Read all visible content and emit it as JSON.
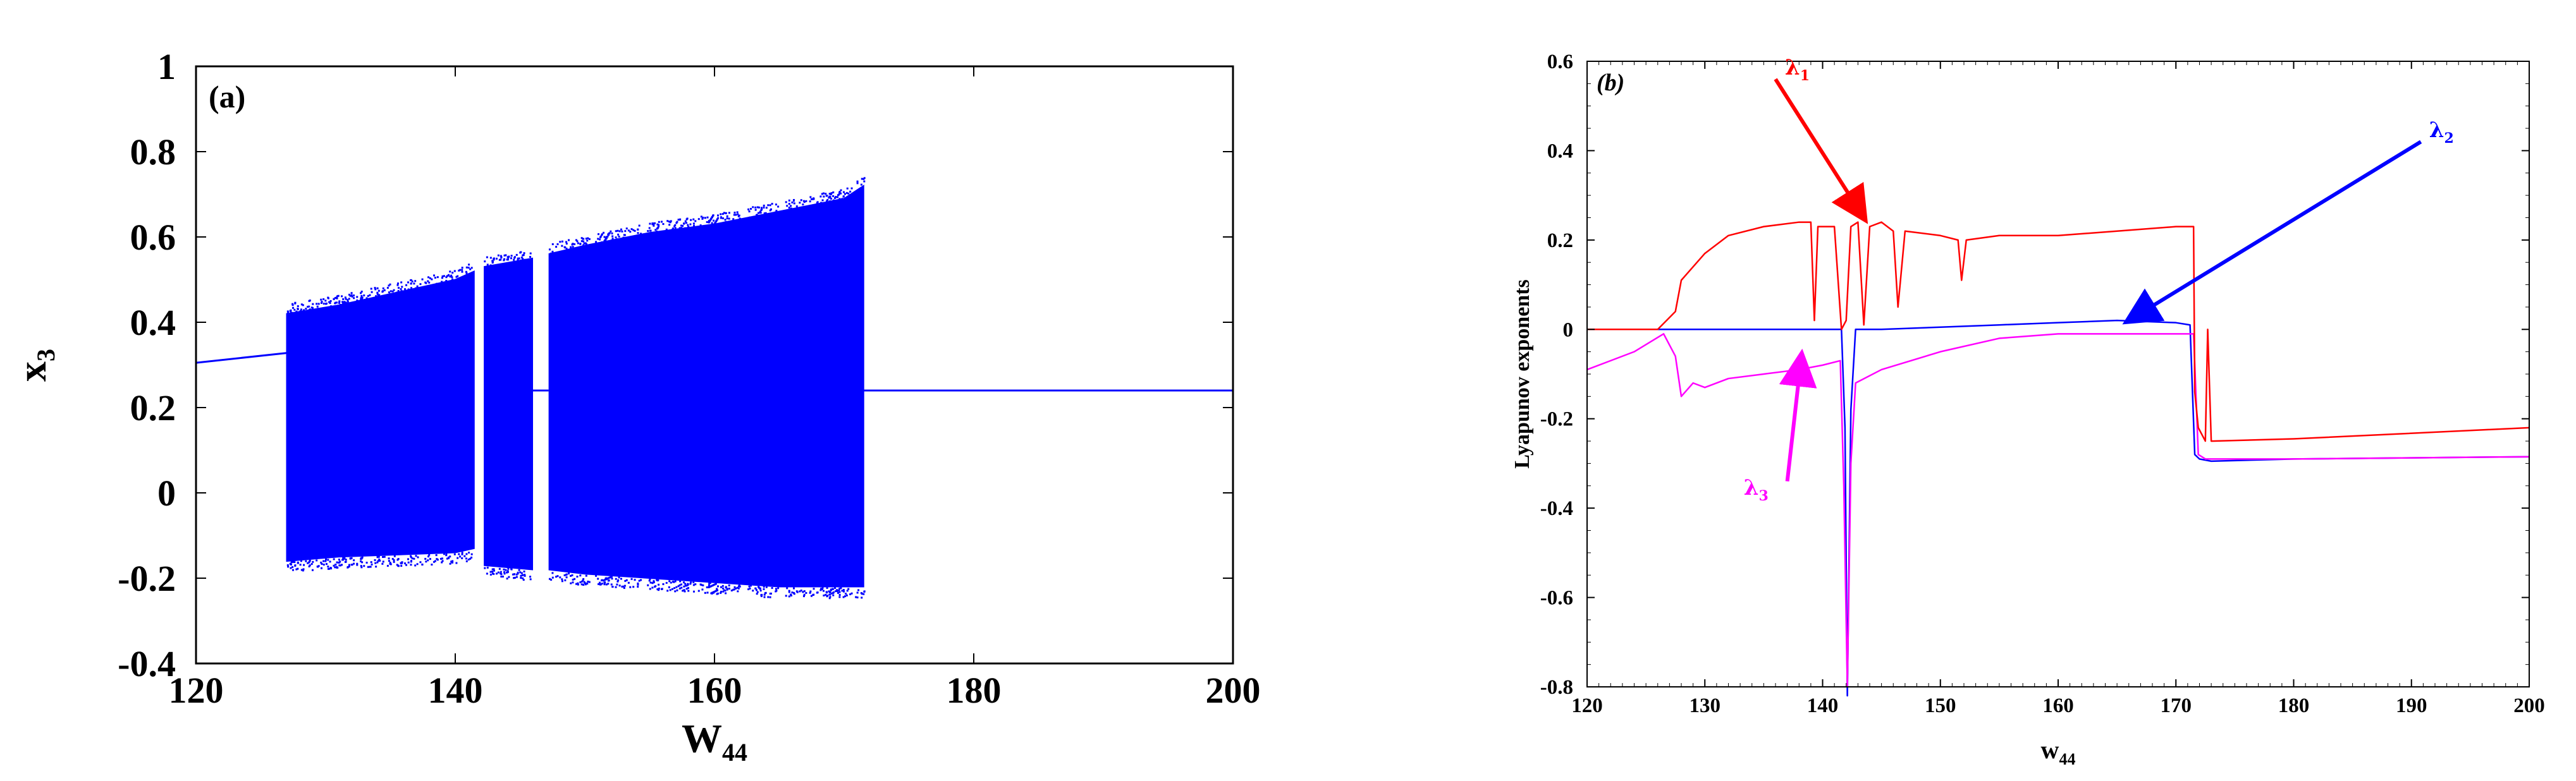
{
  "chart_data": [
    {
      "panel_label": "(a)",
      "type": "scatter",
      "xlabel": "W",
      "xlabel_sub": "44",
      "ylabel": "x",
      "ylabel_sub": "3",
      "xlim": [
        120,
        200
      ],
      "ylim": [
        -0.4,
        1
      ],
      "xticks": [
        120,
        140,
        160,
        180,
        200
      ],
      "xtick_labels": [
        "120",
        "140",
        "160",
        "180",
        "200"
      ],
      "yticks": [
        -0.4,
        -0.2,
        0,
        0.2,
        0.4,
        0.6,
        0.8,
        1
      ],
      "ytick_labels": [
        "-0.4",
        "-0.2",
        "0",
        "0.2",
        "0.4",
        "0.6",
        "0.8",
        "1"
      ],
      "grid": false,
      "color": "#0000ff",
      "fixed_point_branches": [
        {
          "x": [
            120,
            127
          ],
          "y": [
            0.305,
            0.328
          ]
        },
        {
          "x": [
            171.5,
            200
          ],
          "y": [
            0.24,
            0.24
          ]
        }
      ],
      "chaotic_bands": [
        {
          "x": [
            127,
            131,
            140,
            141.5
          ],
          "y_min": [
            -0.16,
            -0.15,
            -0.14,
            -0.13
          ],
          "y_max": [
            0.42,
            0.44,
            0.5,
            0.52
          ]
        },
        {
          "x": [
            142.2,
            146
          ],
          "y_min": [
            -0.17,
            -0.18
          ],
          "y_max": [
            0.53,
            0.55
          ]
        },
        {
          "x": [
            147.2,
            150,
            155,
            160,
            165,
            170,
            171.5
          ],
          "y_min": [
            -0.18,
            -0.19,
            -0.2,
            -0.21,
            -0.22,
            -0.22,
            -0.22
          ],
          "y_max": [
            0.56,
            0.58,
            0.61,
            0.63,
            0.66,
            0.69,
            0.72
          ]
        }
      ],
      "gaps": [
        {
          "x": [
            141.5,
            142.2
          ]
        },
        {
          "x": [
            146,
            147.2
          ],
          "y": 0.24
        }
      ]
    },
    {
      "panel_label": "(b)",
      "type": "line",
      "xlabel": "w",
      "xlabel_sub": "44",
      "ylabel": "Lyapunov exponents",
      "xlim": [
        120,
        200
      ],
      "ylim": [
        -0.8,
        0.6
      ],
      "xticks": [
        120,
        130,
        140,
        150,
        160,
        170,
        180,
        190,
        200
      ],
      "xtick_labels": [
        "120",
        "130",
        "140",
        "150",
        "160",
        "170",
        "180",
        "190",
        "200"
      ],
      "yticks": [
        -0.8,
        -0.6,
        -0.4,
        -0.2,
        0,
        0.2,
        0.4,
        0.6
      ],
      "ytick_labels": [
        "-0.8",
        "-0.6",
        "-0.4",
        "-0.2",
        "0",
        "0.2",
        "0.4",
        "0.6"
      ],
      "grid": false,
      "series": [
        {
          "name": "λ",
          "sub": "1",
          "color": "#ff0000",
          "x": [
            120,
            126,
            127.5,
            128,
            130,
            132,
            135,
            138,
            139,
            139.3,
            139.6,
            141,
            141.6,
            142,
            142.4,
            143,
            143.5,
            144,
            145,
            146,
            146.4,
            147,
            150,
            151.5,
            151.8,
            152.2,
            155,
            160,
            165,
            170,
            171.5,
            171.6,
            171.9,
            172.5,
            172.7,
            173,
            180,
            200
          ],
          "y": [
            0,
            0,
            0.04,
            0.11,
            0.17,
            0.21,
            0.23,
            0.24,
            0.24,
            0.02,
            0.23,
            0.23,
            0.0,
            0.02,
            0.23,
            0.24,
            0.01,
            0.23,
            0.24,
            0.22,
            0.05,
            0.22,
            0.21,
            0.2,
            0.11,
            0.2,
            0.21,
            0.21,
            0.22,
            0.23,
            0.23,
            -0.14,
            -0.22,
            -0.25,
            0.0,
            -0.25,
            -0.245,
            -0.22
          ]
        },
        {
          "name": "λ",
          "sub": "2",
          "color": "#0000ff",
          "x": [
            120,
            127.5,
            135,
            140,
            141.6,
            141.9,
            142.1,
            142.4,
            142.8,
            145,
            150,
            155,
            160,
            165,
            170,
            171.2,
            171.6,
            172,
            173,
            180,
            200
          ],
          "y": [
            0,
            0,
            0,
            0,
            0,
            -0.22,
            -0.82,
            -0.18,
            0,
            0.0,
            0.005,
            0.01,
            0.015,
            0.02,
            0.015,
            0.01,
            -0.28,
            -0.29,
            -0.295,
            -0.29,
            -0.285
          ]
        },
        {
          "name": "λ",
          "sub": "3",
          "color": "#ff00ff",
          "x": [
            120,
            124,
            126.5,
            127.5,
            128,
            129,
            130,
            132,
            135,
            138,
            140,
            141.5,
            141.8,
            142.1,
            142.4,
            142.8,
            145,
            150,
            155,
            160,
            165,
            170,
            171.5,
            171.9,
            172.5,
            173,
            180,
            200
          ],
          "y": [
            -0.09,
            -0.05,
            -0.01,
            -0.06,
            -0.15,
            -0.12,
            -0.13,
            -0.11,
            -0.1,
            -0.09,
            -0.08,
            -0.07,
            -0.35,
            -0.8,
            -0.3,
            -0.12,
            -0.09,
            -0.05,
            -0.02,
            -0.01,
            -0.01,
            -0.01,
            -0.01,
            -0.28,
            -0.29,
            -0.29,
            -0.29,
            -0.285
          ]
        }
      ],
      "annotations": [
        {
          "text": "λ",
          "sub": "1",
          "series": 0,
          "from": [
            136,
            0.56
          ],
          "to": [
            143.5,
            0.25
          ]
        },
        {
          "text": "λ",
          "sub": "2",
          "series": 1,
          "from": [
            190.8,
            0.42
          ],
          "to": [
            166,
            0.02
          ]
        },
        {
          "text": "λ",
          "sub": "3",
          "series": 2,
          "from": [
            137,
            -0.34
          ],
          "to": [
            138.2,
            -0.06
          ]
        }
      ]
    }
  ]
}
